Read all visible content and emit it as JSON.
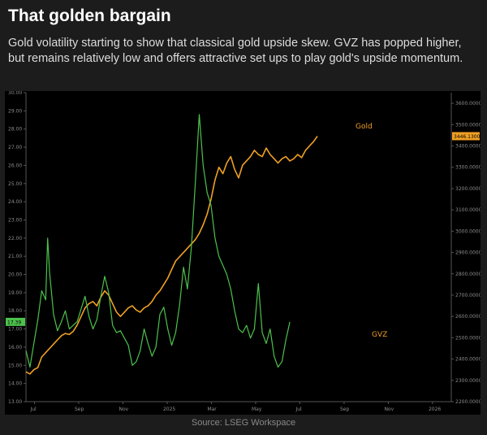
{
  "title": "That golden bargain",
  "subtitle": "Gold volatility starting to show that classical gold upside skew. GVZ has popped higher, but remains relatively low and offers attractive set ups to play gold's upside momentum.",
  "source": "Source: LSEG Workspace",
  "colors": {
    "gold": "#f0a024",
    "gvz": "#4cc24c",
    "background": "#000000",
    "axis": "#555555"
  },
  "chart_data": {
    "type": "line",
    "x_ticks": [
      "Jul",
      "Sep",
      "Nov",
      "2025",
      "Mar",
      "May",
      "Jul",
      "Sep",
      "Nov",
      "2026"
    ],
    "left_axis": {
      "ylim": [
        13.0,
        30.0
      ],
      "ticks": [
        "13.00",
        "14.00",
        "15.00",
        "16.00",
        "17.00",
        "18.00",
        "19.00",
        "20.00",
        "21.00",
        "22.00",
        "23.00",
        "24.00",
        "25.00",
        "26.00",
        "27.00",
        "28.00",
        "29.00",
        "30.00"
      ]
    },
    "right_axis": {
      "ylim": [
        2200,
        3650
      ],
      "ticks": [
        "2200.0000",
        "2300.0000",
        "2400.0000",
        "2500.0000",
        "2600.0000",
        "2700.0000",
        "2800.0000",
        "2900.0000",
        "3000.0000",
        "3100.0000",
        "3200.0000",
        "3300.0000",
        "3400.0000",
        "3500.0000",
        "3600.0000"
      ]
    },
    "last_value_labels": {
      "gvz": "17.39",
      "gold": "3446.1300"
    },
    "series": [
      {
        "name": "Gold",
        "axis": "right",
        "values": [
          [
            0,
            2340
          ],
          [
            2,
            2330
          ],
          [
            4,
            2350
          ],
          [
            6,
            2360
          ],
          [
            8,
            2410
          ],
          [
            10,
            2430
          ],
          [
            12,
            2450
          ],
          [
            14,
            2470
          ],
          [
            16,
            2490
          ],
          [
            18,
            2510
          ],
          [
            20,
            2520
          ],
          [
            22,
            2515
          ],
          [
            24,
            2530
          ],
          [
            26,
            2560
          ],
          [
            28,
            2600
          ],
          [
            30,
            2640
          ],
          [
            32,
            2660
          ],
          [
            34,
            2670
          ],
          [
            36,
            2650
          ],
          [
            38,
            2690
          ],
          [
            40,
            2720
          ],
          [
            42,
            2700
          ],
          [
            44,
            2660
          ],
          [
            46,
            2620
          ],
          [
            48,
            2600
          ],
          [
            50,
            2620
          ],
          [
            52,
            2640
          ],
          [
            54,
            2650
          ],
          [
            56,
            2630
          ],
          [
            58,
            2620
          ],
          [
            60,
            2640
          ],
          [
            62,
            2650
          ],
          [
            64,
            2670
          ],
          [
            66,
            2700
          ],
          [
            68,
            2720
          ],
          [
            70,
            2750
          ],
          [
            72,
            2780
          ],
          [
            74,
            2820
          ],
          [
            76,
            2860
          ],
          [
            78,
            2880
          ],
          [
            80,
            2900
          ],
          [
            82,
            2920
          ],
          [
            84,
            2940
          ],
          [
            86,
            2960
          ],
          [
            88,
            2990
          ],
          [
            90,
            3030
          ],
          [
            92,
            3080
          ],
          [
            94,
            3150
          ],
          [
            96,
            3240
          ],
          [
            98,
            3300
          ],
          [
            100,
            3270
          ],
          [
            102,
            3320
          ],
          [
            104,
            3350
          ],
          [
            106,
            3290
          ],
          [
            108,
            3250
          ],
          [
            110,
            3310
          ],
          [
            112,
            3330
          ],
          [
            114,
            3350
          ],
          [
            116,
            3380
          ],
          [
            118,
            3360
          ],
          [
            120,
            3350
          ],
          [
            122,
            3390
          ],
          [
            124,
            3360
          ],
          [
            126,
            3340
          ],
          [
            128,
            3320
          ],
          [
            130,
            3340
          ],
          [
            132,
            3350
          ],
          [
            134,
            3330
          ],
          [
            136,
            3340
          ],
          [
            138,
            3360
          ],
          [
            140,
            3345
          ],
          [
            142,
            3380
          ],
          [
            144,
            3400
          ],
          [
            146,
            3420
          ],
          [
            148,
            3446
          ]
        ]
      },
      {
        "name": "GVZ",
        "axis": "left",
        "values": [
          [
            0,
            15.8
          ],
          [
            2,
            14.9
          ],
          [
            4,
            16.2
          ],
          [
            6,
            17.5
          ],
          [
            8,
            19.1
          ],
          [
            10,
            18.6
          ],
          [
            11,
            22.0
          ],
          [
            12,
            20.1
          ],
          [
            14,
            17.8
          ],
          [
            16,
            16.9
          ],
          [
            18,
            17.4
          ],
          [
            20,
            18.0
          ],
          [
            22,
            17.0
          ],
          [
            24,
            17.2
          ],
          [
            26,
            17.4
          ],
          [
            28,
            18.1
          ],
          [
            30,
            18.8
          ],
          [
            32,
            17.7
          ],
          [
            34,
            17.0
          ],
          [
            36,
            17.5
          ],
          [
            38,
            18.8
          ],
          [
            40,
            19.9
          ],
          [
            42,
            19.0
          ],
          [
            44,
            17.2
          ],
          [
            46,
            16.8
          ],
          [
            48,
            16.9
          ],
          [
            50,
            16.5
          ],
          [
            52,
            16.1
          ],
          [
            54,
            15.0
          ],
          [
            56,
            15.2
          ],
          [
            58,
            15.8
          ],
          [
            60,
            17.0
          ],
          [
            62,
            16.2
          ],
          [
            64,
            15.5
          ],
          [
            66,
            16.0
          ],
          [
            68,
            17.8
          ],
          [
            70,
            18.2
          ],
          [
            72,
            17.0
          ],
          [
            74,
            16.1
          ],
          [
            76,
            16.8
          ],
          [
            78,
            18.3
          ],
          [
            80,
            20.4
          ],
          [
            82,
            19.2
          ],
          [
            84,
            21.5
          ],
          [
            86,
            25.0
          ],
          [
            88,
            28.8
          ],
          [
            90,
            26.0
          ],
          [
            92,
            24.5
          ],
          [
            94,
            23.8
          ],
          [
            96,
            22.0
          ],
          [
            98,
            21.0
          ],
          [
            100,
            20.5
          ],
          [
            102,
            20.0
          ],
          [
            104,
            19.2
          ],
          [
            106,
            18.0
          ],
          [
            108,
            17.0
          ],
          [
            110,
            16.8
          ],
          [
            112,
            17.2
          ],
          [
            114,
            16.5
          ],
          [
            116,
            17.0
          ],
          [
            118,
            19.5
          ],
          [
            120,
            16.8
          ],
          [
            122,
            16.2
          ],
          [
            124,
            17.0
          ],
          [
            126,
            15.5
          ],
          [
            128,
            14.9
          ],
          [
            130,
            15.2
          ],
          [
            132,
            16.4
          ],
          [
            134,
            17.39
          ]
        ]
      }
    ]
  }
}
